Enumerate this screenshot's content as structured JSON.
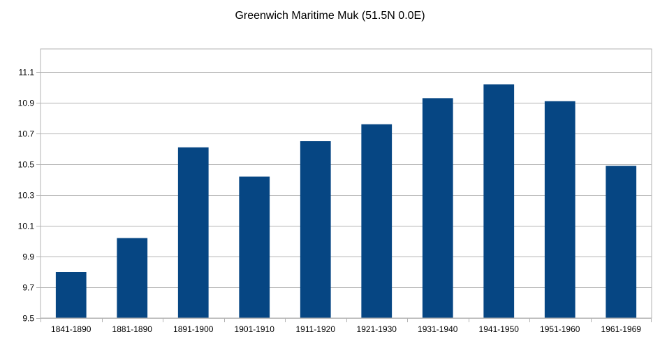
{
  "chart_data": {
    "type": "bar",
    "title": "Greenwich Maritime Muk (51.5N 0.0E)",
    "categories": [
      "1841-1890",
      "1881-1890",
      "1891-1900",
      "1901-1910",
      "1911-1920",
      "1921-1930",
      "1931-1940",
      "1941-1950",
      "1951-1960",
      "1961-1969"
    ],
    "values": [
      9.8,
      10.02,
      10.61,
      10.42,
      10.65,
      10.76,
      10.93,
      11.02,
      10.91,
      10.49
    ],
    "xlabel": "",
    "ylabel": "",
    "ylim": [
      9.5,
      11.25
    ],
    "yticks": [
      "9.5",
      "9.7",
      "9.9",
      "10.1",
      "10.3",
      "10.5",
      "10.7",
      "10.9",
      "11.1"
    ],
    "grid": true,
    "legend": "none",
    "colors": {
      "bar": "#064683",
      "grid": "#b3b3b3",
      "axis": "#b3b3b3"
    }
  }
}
